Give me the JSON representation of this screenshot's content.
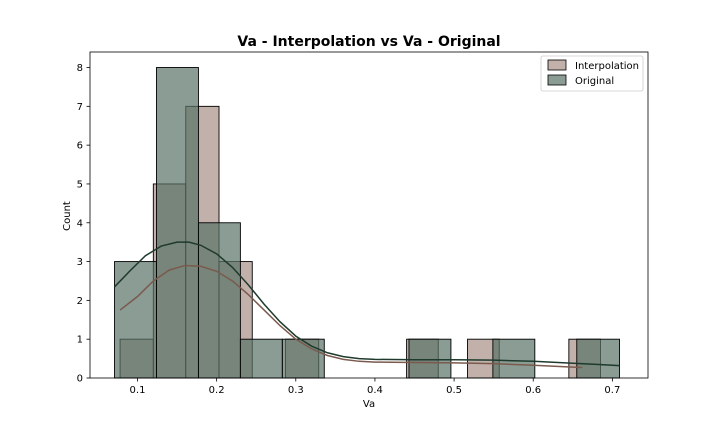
{
  "chart_data": {
    "type": "histogram",
    "title": "Va - Interpolation vs Va - Original",
    "xlabel": "Va",
    "ylabel": "Count",
    "xlim": [
      0.04,
      0.745
    ],
    "ylim": [
      0,
      8.4
    ],
    "xticks": [
      "0.1",
      "0.2",
      "0.3",
      "0.4",
      "0.5",
      "0.6",
      "0.7"
    ],
    "yticks": [
      "0",
      "1",
      "2",
      "3",
      "4",
      "5",
      "6",
      "7",
      "8"
    ],
    "legend_position": "top-right",
    "grid": false,
    "series": [
      {
        "name": "Interpolation",
        "color": "#a89087",
        "kde_color": "#7a5a4d",
        "bins": [
          {
            "x0": 0.078,
            "x1": 0.12,
            "count": 1
          },
          {
            "x0": 0.12,
            "x1": 0.161,
            "count": 5
          },
          {
            "x0": 0.161,
            "x1": 0.203,
            "count": 7
          },
          {
            "x0": 0.203,
            "x1": 0.245,
            "count": 3
          },
          {
            "x0": 0.287,
            "x1": 0.329,
            "count": 1
          },
          {
            "x0": 0.44,
            "x1": 0.48,
            "count": 1
          },
          {
            "x0": 0.517,
            "x1": 0.557,
            "count": 1
          },
          {
            "x0": 0.645,
            "x1": 0.685,
            "count": 1
          }
        ],
        "kde": [
          [
            0.078,
            1.75
          ],
          [
            0.1,
            2.1
          ],
          [
            0.12,
            2.5
          ],
          [
            0.14,
            2.78
          ],
          [
            0.16,
            2.9
          ],
          [
            0.18,
            2.88
          ],
          [
            0.2,
            2.75
          ],
          [
            0.22,
            2.5
          ],
          [
            0.24,
            2.15
          ],
          [
            0.26,
            1.75
          ],
          [
            0.28,
            1.35
          ],
          [
            0.3,
            1.0
          ],
          [
            0.32,
            0.75
          ],
          [
            0.34,
            0.58
          ],
          [
            0.36,
            0.48
          ],
          [
            0.38,
            0.43
          ],
          [
            0.4,
            0.41
          ],
          [
            0.45,
            0.4
          ],
          [
            0.5,
            0.39
          ],
          [
            0.55,
            0.37
          ],
          [
            0.6,
            0.33
          ],
          [
            0.65,
            0.28
          ],
          [
            0.662,
            0.27
          ]
        ]
      },
      {
        "name": "Original",
        "color": "#587266",
        "kde_color": "#1e3a2c",
        "bins": [
          {
            "x0": 0.071,
            "x1": 0.124,
            "count": 3
          },
          {
            "x0": 0.124,
            "x1": 0.177,
            "count": 8
          },
          {
            "x0": 0.177,
            "x1": 0.23,
            "count": 4
          },
          {
            "x0": 0.23,
            "x1": 0.283,
            "count": 1
          },
          {
            "x0": 0.283,
            "x1": 0.336,
            "count": 1
          },
          {
            "x0": 0.443,
            "x1": 0.496,
            "count": 1
          },
          {
            "x0": 0.549,
            "x1": 0.602,
            "count": 1
          },
          {
            "x0": 0.655,
            "x1": 0.709,
            "count": 1
          }
        ],
        "kde": [
          [
            0.071,
            2.35
          ],
          [
            0.09,
            2.75
          ],
          [
            0.11,
            3.15
          ],
          [
            0.13,
            3.4
          ],
          [
            0.15,
            3.5
          ],
          [
            0.165,
            3.5
          ],
          [
            0.18,
            3.42
          ],
          [
            0.2,
            3.2
          ],
          [
            0.22,
            2.85
          ],
          [
            0.24,
            2.4
          ],
          [
            0.26,
            1.9
          ],
          [
            0.28,
            1.45
          ],
          [
            0.3,
            1.08
          ],
          [
            0.32,
            0.82
          ],
          [
            0.34,
            0.65
          ],
          [
            0.36,
            0.55
          ],
          [
            0.38,
            0.5
          ],
          [
            0.4,
            0.48
          ],
          [
            0.45,
            0.47
          ],
          [
            0.5,
            0.47
          ],
          [
            0.55,
            0.46
          ],
          [
            0.6,
            0.43
          ],
          [
            0.65,
            0.38
          ],
          [
            0.68,
            0.35
          ],
          [
            0.709,
            0.32
          ]
        ]
      }
    ]
  }
}
